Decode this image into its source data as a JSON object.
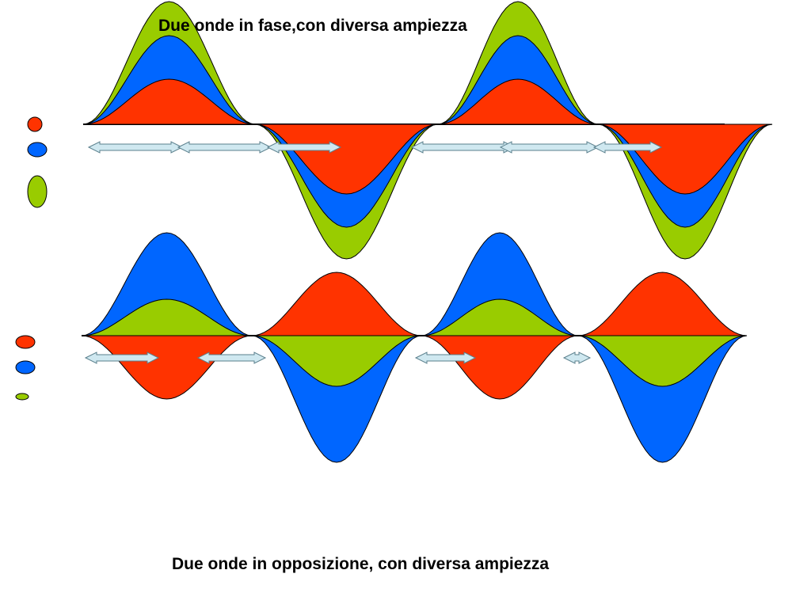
{
  "captions": {
    "top": "Due onde in fase,con diversa ampiezza",
    "bottom": "Due onde in opposizione, con diversa ampiezza"
  },
  "colors": {
    "red": "#ff3300",
    "blue": "#0066ff",
    "green": "#99cc00",
    "arrow_fill": "#cfe8f0",
    "arrow_stroke": "#5a7f8c",
    "outline": "#000000"
  },
  "diagrams": [
    {
      "id": "in-phase",
      "relation": "in phase",
      "waves_back_to_front": [
        {
          "color": "green",
          "relative_amplitude": 1.0,
          "phase": "same"
        },
        {
          "color": "blue",
          "relative_amplitude": 0.85,
          "phase": "same"
        },
        {
          "color": "red",
          "relative_amplitude": 0.6,
          "phase": "same"
        }
      ],
      "half_cycles": 4,
      "legend_dots": [
        "red",
        "blue",
        "green"
      ]
    },
    {
      "id": "in-opposition",
      "relation": "opposition",
      "waves_back_to_front": [
        {
          "color": "blue",
          "relative_amplitude": 1.0,
          "phase": "first-up"
        },
        {
          "color": "red",
          "relative_amplitude": 0.55,
          "phase": "first-down"
        },
        {
          "color": "green",
          "relative_amplitude": 0.4,
          "phase": "first-up"
        }
      ],
      "half_cycles": 4,
      "legend_dots": [
        "red",
        "blue",
        "green"
      ]
    }
  ]
}
